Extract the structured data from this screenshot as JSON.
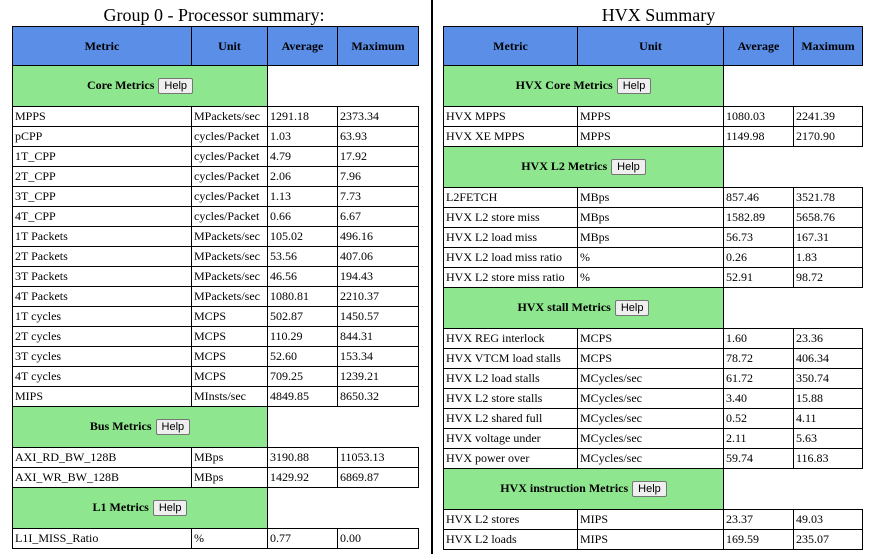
{
  "left": {
    "title": "Group 0 - Processor summary:",
    "headers": [
      "Metric",
      "Unit",
      "Average",
      "Maximum"
    ],
    "help_label": "Help",
    "sections": [
      {
        "name": "Core Metrics",
        "rows": [
          [
            "MPPS",
            "MPackets/sec",
            "1291.18",
            "2373.34"
          ],
          [
            "pCPP",
            "cycles/Packet",
            "1.03",
            "63.93"
          ],
          [
            "1T_CPP",
            "cycles/Packet",
            "4.79",
            "17.92"
          ],
          [
            "2T_CPP",
            "cycles/Packet",
            "2.06",
            "7.96"
          ],
          [
            "3T_CPP",
            "cycles/Packet",
            "1.13",
            "7.73"
          ],
          [
            "4T_CPP",
            "cycles/Packet",
            "0.66",
            "6.67"
          ],
          [
            "1T Packets",
            "MPackets/sec",
            "105.02",
            "496.16"
          ],
          [
            "2T Packets",
            "MPackets/sec",
            "53.56",
            "407.06"
          ],
          [
            "3T Packets",
            "MPackets/sec",
            "46.56",
            "194.43"
          ],
          [
            "4T Packets",
            "MPackets/sec",
            "1080.81",
            "2210.37"
          ],
          [
            "1T cycles",
            "MCPS",
            "502.87",
            "1450.57"
          ],
          [
            "2T cycles",
            "MCPS",
            "110.29",
            "844.31"
          ],
          [
            "3T cycles",
            "MCPS",
            "52.60",
            "153.34"
          ],
          [
            "4T cycles",
            "MCPS",
            "709.25",
            "1239.21"
          ],
          [
            "MIPS",
            "MInsts/sec",
            "4849.85",
            "8650.32"
          ]
        ]
      },
      {
        "name": "Bus Metrics",
        "rows": [
          [
            "AXI_RD_BW_128B",
            "MBps",
            "3190.88",
            "11053.13"
          ],
          [
            "AXI_WR_BW_128B",
            "MBps",
            "1429.92",
            "6869.87"
          ]
        ]
      },
      {
        "name": "L1 Metrics",
        "rows": [
          [
            "L1I_MISS_Ratio",
            "%",
            "0.77",
            "0.00"
          ]
        ]
      }
    ]
  },
  "right": {
    "title": "HVX Summary",
    "headers": [
      "Metric",
      "Unit",
      "Average",
      "Maximum"
    ],
    "help_label": "Help",
    "sections": [
      {
        "name": "HVX Core Metrics",
        "rows": [
          [
            "HVX MPPS",
            "MPPS",
            "1080.03",
            "2241.39"
          ],
          [
            "HVX XE MPPS",
            "MPPS",
            "1149.98",
            "2170.90"
          ]
        ]
      },
      {
        "name": "HVX L2 Metrics",
        "rows": [
          [
            "L2FETCH",
            "MBps",
            "857.46",
            "3521.78"
          ],
          [
            "HVX L2 store miss",
            "MBps",
            "1582.89",
            "5658.76"
          ],
          [
            "HVX L2 load miss",
            "MBps",
            "56.73",
            "167.31"
          ],
          [
            "HVX L2 load miss ratio",
            "%",
            "0.26",
            "1.83"
          ],
          [
            "HVX L2 store miss ratio",
            "%",
            "52.91",
            "98.72"
          ]
        ]
      },
      {
        "name": "HVX stall Metrics",
        "rows": [
          [
            "HVX REG interlock",
            "MCPS",
            "1.60",
            "23.36"
          ],
          [
            "HVX VTCM load stalls",
            "MCPS",
            "78.72",
            "406.34"
          ],
          [
            "HVX L2 load stalls",
            "MCycles/sec",
            "61.72",
            "350.74"
          ],
          [
            "HVX L2 store stalls",
            "MCycles/sec",
            "3.40",
            "15.88"
          ],
          [
            "HVX L2 shared full",
            "MCycles/sec",
            "0.52",
            "4.11"
          ],
          [
            "HVX voltage under",
            "MCycles/sec",
            "2.11",
            "5.63"
          ],
          [
            "HVX power over",
            "MCycles/sec",
            "59.74",
            "116.83"
          ]
        ]
      },
      {
        "name": "HVX instruction Metrics",
        "rows": [
          [
            "HVX L2 stores",
            "MIPS",
            "23.37",
            "49.03"
          ],
          [
            "HVX L2 loads",
            "MIPS",
            "169.59",
            "235.07"
          ]
        ]
      }
    ]
  }
}
